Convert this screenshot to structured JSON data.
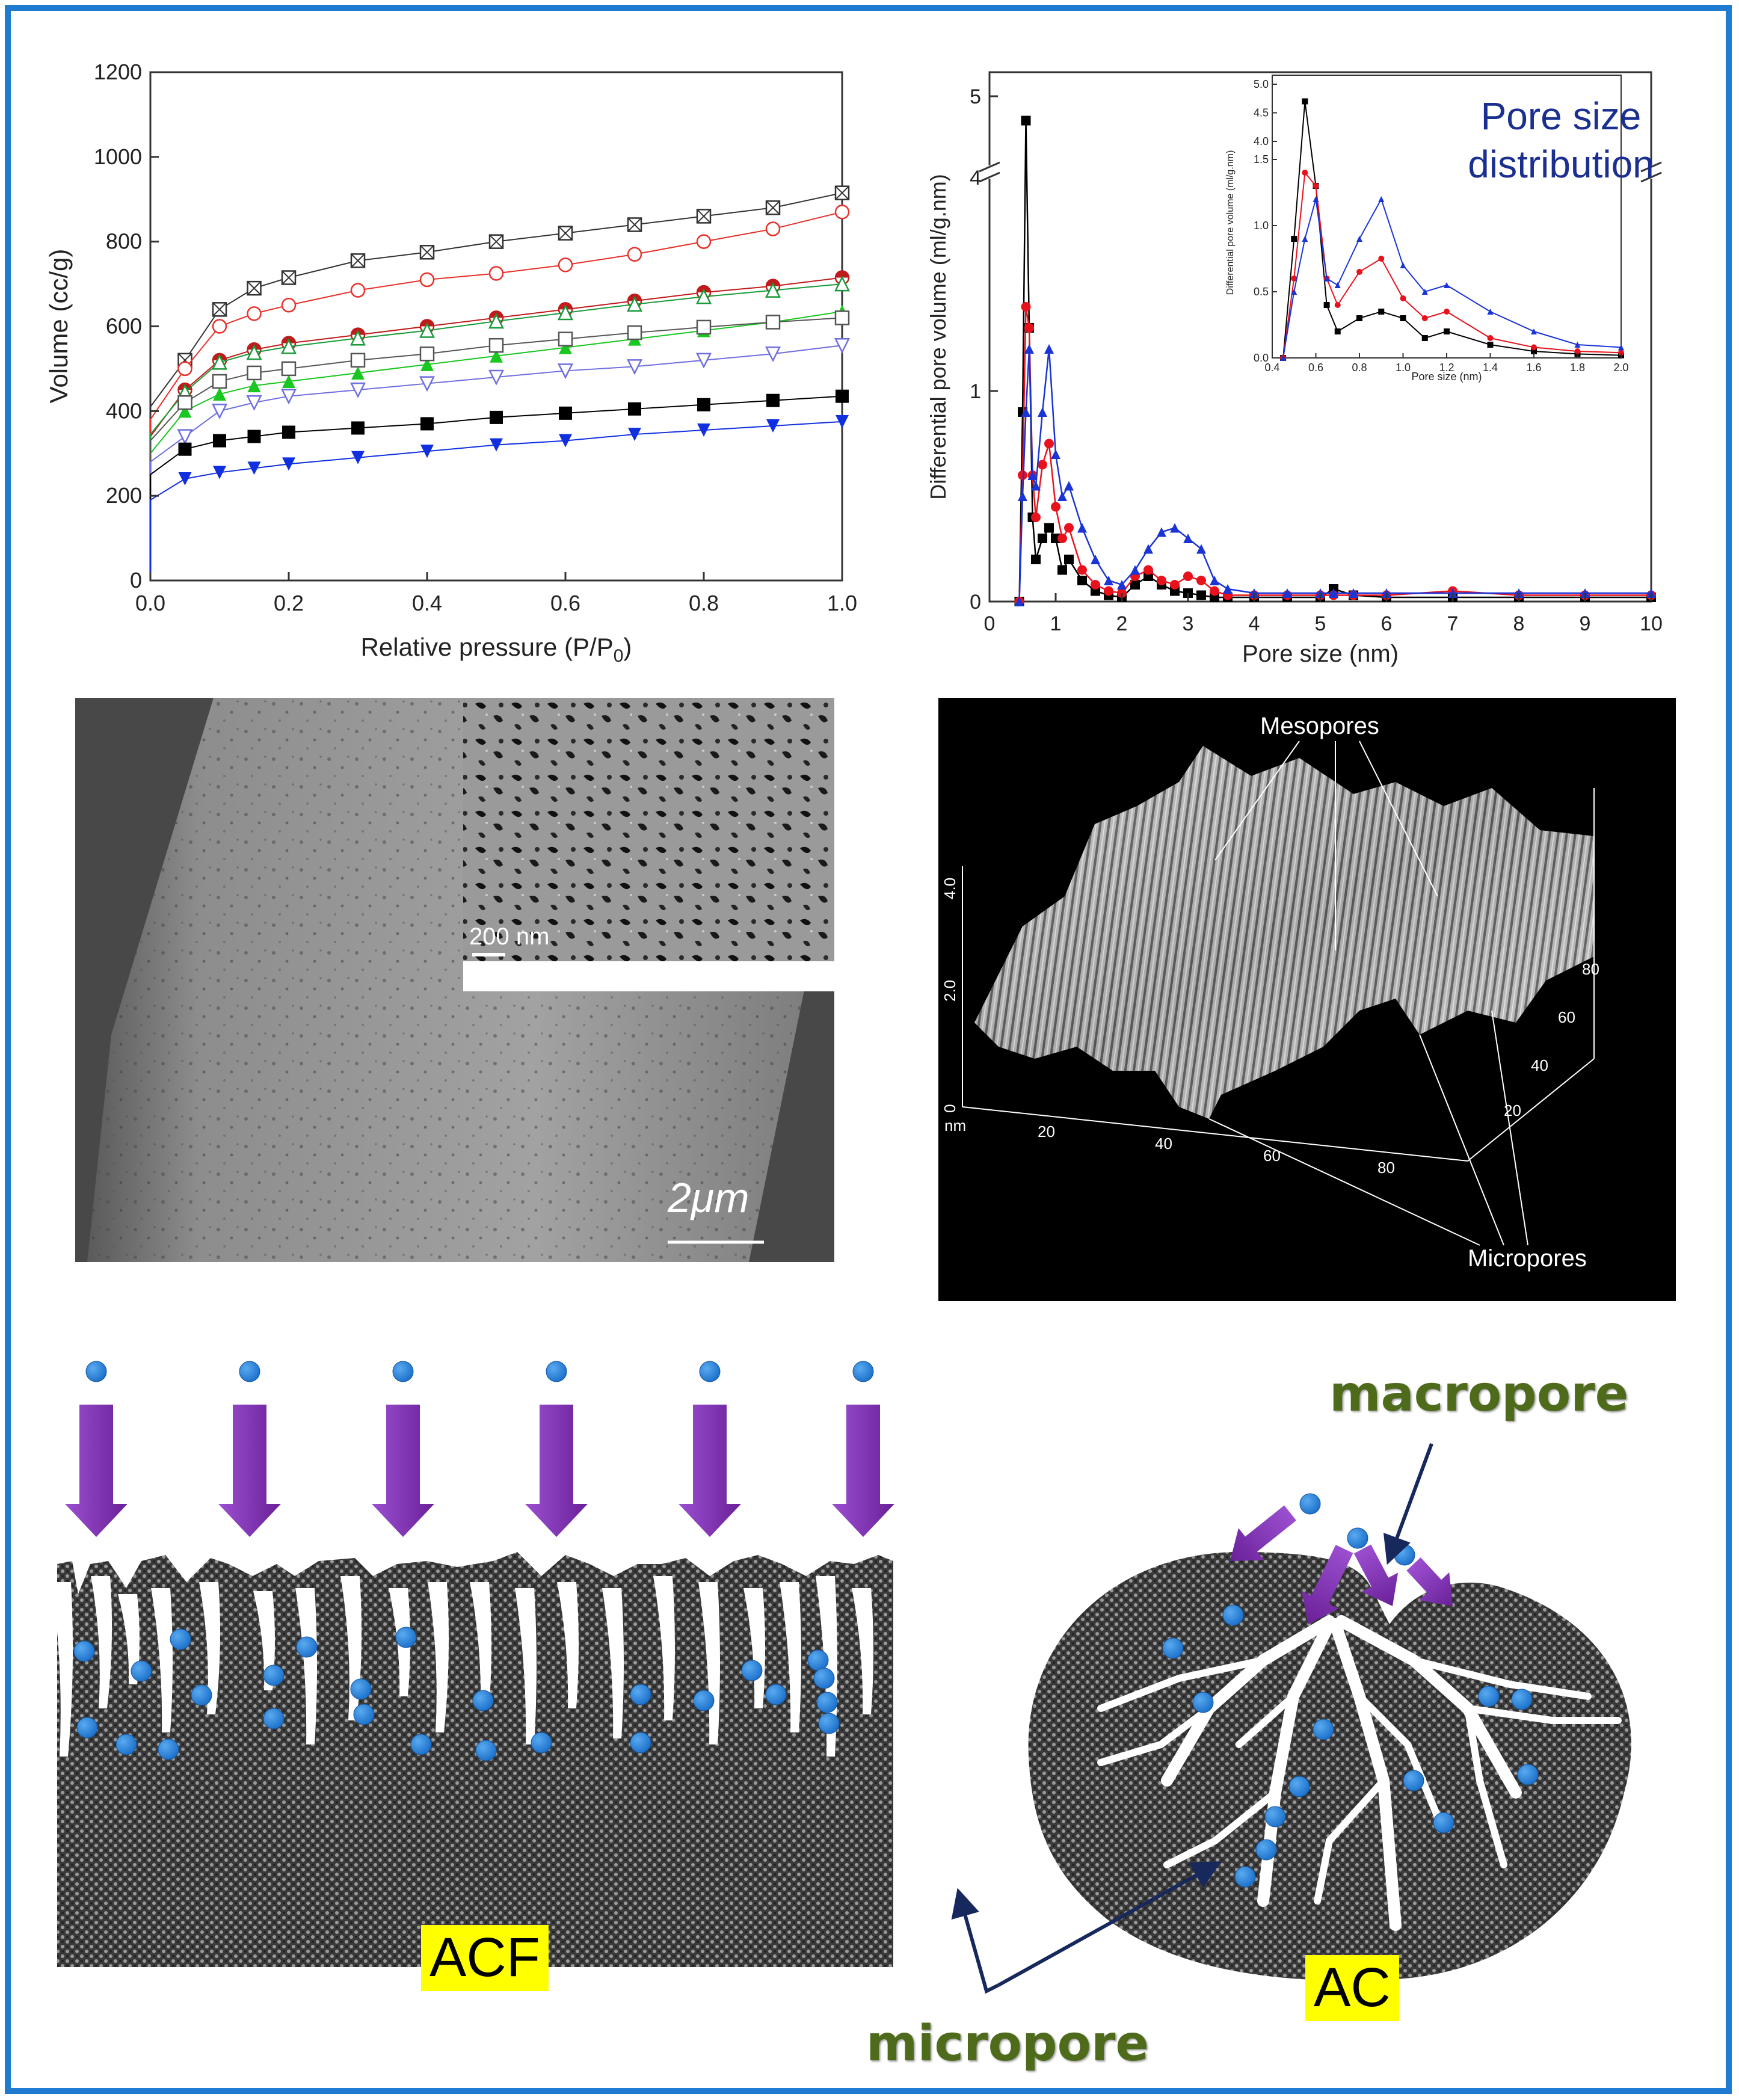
{
  "colors": {
    "frame": "#1f7bd0",
    "arrow_purple": "#7b2fa8",
    "dot_blue": "#1a6fc9",
    "label_bg": "#ffff00",
    "label_green": "#4d6b1a",
    "navy": "#17285c",
    "title_blue": "#1a2f8f"
  },
  "isotherm": {
    "chart_data": {
      "type": "line",
      "xlabel": "Relative pressure (P/P0)",
      "ylabel": "Volume (cc/g)",
      "xlim": [
        0,
        1.0
      ],
      "ylim": [
        0,
        1200
      ],
      "xticks": [
        "0.0",
        "0.2",
        "0.4",
        "0.6",
        "0.8",
        "1.0"
      ],
      "yticks": [
        "0",
        "200",
        "400",
        "600",
        "800",
        "1000",
        "1200"
      ],
      "x": [
        0.0,
        0.05,
        0.1,
        0.15,
        0.2,
        0.3,
        0.4,
        0.5,
        0.6,
        0.7,
        0.8,
        0.9,
        1.0
      ],
      "series": [
        {
          "marker": "crossed-square",
          "color": "#333333",
          "values": [
            410,
            520,
            640,
            690,
            715,
            755,
            775,
            800,
            820,
            840,
            860,
            880,
            915
          ]
        },
        {
          "marker": "open-circle",
          "color": "#e8302a",
          "values": [
            380,
            500,
            600,
            630,
            650,
            685,
            710,
            725,
            745,
            770,
            800,
            830,
            870
          ]
        },
        {
          "marker": "half-circle",
          "color": "#c01a1a",
          "values": [
            340,
            450,
            520,
            545,
            560,
            580,
            600,
            620,
            640,
            660,
            680,
            695,
            715
          ]
        },
        {
          "marker": "open-triangle",
          "color": "#1a9a3a",
          "values": [
            345,
            445,
            515,
            538,
            552,
            572,
            590,
            612,
            632,
            652,
            670,
            685,
            700
          ]
        },
        {
          "marker": "filled-triangle",
          "color": "#18c71f",
          "values": [
            300,
            400,
            440,
            460,
            470,
            490,
            510,
            530,
            550,
            570,
            590,
            610,
            635
          ]
        },
        {
          "marker": "open-square",
          "color": "#555555",
          "values": [
            330,
            420,
            470,
            490,
            500,
            520,
            535,
            555,
            570,
            585,
            598,
            610,
            620
          ]
        },
        {
          "marker": "open-down-triangle",
          "color": "#6f6fe0",
          "values": [
            280,
            340,
            400,
            420,
            435,
            450,
            465,
            480,
            495,
            505,
            520,
            535,
            555
          ]
        },
        {
          "marker": "filled-square",
          "color": "#000000",
          "values": [
            250,
            310,
            330,
            340,
            350,
            360,
            370,
            385,
            395,
            405,
            415,
            425,
            435
          ]
        },
        {
          "marker": "filled-down-triangle",
          "color": "#1030e0",
          "values": [
            190,
            240,
            255,
            265,
            275,
            290,
            305,
            320,
            330,
            345,
            355,
            365,
            375
          ]
        }
      ]
    }
  },
  "poresize": {
    "chart_data": {
      "type": "line",
      "xlabel": "Pore size (nm)",
      "ylabel": "Differential pore volume (ml/g.nm)",
      "xlim": [
        0,
        10
      ],
      "ylim": [
        0,
        5
      ],
      "xticks": [
        "0",
        "1",
        "2",
        "3",
        "4",
        "5",
        "6",
        "7",
        "8",
        "9",
        "10"
      ],
      "yticks": [
        "0",
        "1",
        "4",
        "5"
      ],
      "annotation": "Pore size distribution",
      "x": [
        0.45,
        0.5,
        0.55,
        0.6,
        0.65,
        0.7,
        0.8,
        0.9,
        1.0,
        1.1,
        1.2,
        1.4,
        1.6,
        1.8,
        2.0,
        2.2,
        2.4,
        2.6,
        2.8,
        3.0,
        3.2,
        3.4,
        3.6,
        4.0,
        4.5,
        5.0,
        5.2,
        5.5,
        6.0,
        7.0,
        8.0,
        9.0,
        10.0
      ],
      "series": [
        {
          "marker": "square",
          "color": "#000000",
          "values": [
            0.0,
            0.9,
            4.7,
            1.3,
            0.4,
            0.2,
            0.3,
            0.35,
            0.3,
            0.15,
            0.2,
            0.1,
            0.05,
            0.03,
            0.02,
            0.08,
            0.12,
            0.08,
            0.05,
            0.04,
            0.03,
            0.02,
            0.02,
            0.02,
            0.02,
            0.02,
            0.06,
            0.03,
            0.02,
            0.02,
            0.02,
            0.02,
            0.02
          ]
        },
        {
          "marker": "circle",
          "color": "#e8121c",
          "values": [
            0.0,
            0.6,
            1.4,
            1.3,
            0.6,
            0.4,
            0.65,
            0.75,
            0.45,
            0.3,
            0.35,
            0.15,
            0.08,
            0.05,
            0.04,
            0.12,
            0.15,
            0.1,
            0.08,
            0.12,
            0.1,
            0.05,
            0.03,
            0.03,
            0.03,
            0.03,
            0.03,
            0.03,
            0.03,
            0.05,
            0.03,
            0.03,
            0.03
          ]
        },
        {
          "marker": "triangle",
          "color": "#1a34d6",
          "values": [
            0.0,
            0.5,
            0.9,
            1.2,
            0.6,
            0.55,
            0.9,
            1.2,
            0.7,
            0.5,
            0.55,
            0.35,
            0.2,
            0.1,
            0.08,
            0.15,
            0.25,
            0.33,
            0.35,
            0.3,
            0.25,
            0.1,
            0.06,
            0.04,
            0.04,
            0.04,
            0.04,
            0.04,
            0.04,
            0.04,
            0.04,
            0.04,
            0.04
          ]
        }
      ],
      "inset": {
        "xlabel": "Pore size (nm)",
        "ylabel": "Differential pore volume (ml/g.nm)",
        "xticks": [
          "0.4",
          "0.6",
          "0.8",
          "1.0",
          "1.2",
          "1.4",
          "1.6",
          "1.8",
          "2.0"
        ],
        "yticks": [
          "0.0",
          "0.5",
          "1.0",
          "1.5",
          "4.0",
          "4.5",
          "5.0"
        ]
      }
    }
  },
  "sem": {
    "scale_main": "2μm",
    "scale_inset": "200 nm"
  },
  "afm": {
    "label_mesopores": "Mesopores",
    "label_micropores": "Micropores",
    "z_ticks": [
      "0",
      "2.0",
      "4.0"
    ],
    "z_unit": "nm",
    "x_ticks": [
      "20",
      "40",
      "60",
      "80"
    ],
    "y_ticks": [
      "20",
      "40",
      "60",
      "80"
    ]
  },
  "schematic": {
    "acf_label": "ACF",
    "ac_label": "AC",
    "macropore_label": "macropore",
    "micropore_label": "micropore"
  }
}
